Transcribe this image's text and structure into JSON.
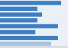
{
  "chart_data": {
    "type": "bar",
    "orientation": "horizontal",
    "categories": [
      null,
      null,
      null,
      null,
      null,
      null,
      null,
      null
    ],
    "values": [
      0.9,
      0.55,
      0.62,
      0.55,
      0.85,
      0.52,
      0.85,
      0.75
    ],
    "colors": [
      "#3F7FC1",
      "#3F7FC1",
      "#3F7FC1",
      "#3F7FC1",
      "#3F7FC1",
      "#3F7FC1",
      "#3F7FC1",
      "#A8C4DE"
    ],
    "xlim": [
      0,
      1.0
    ],
    "tick_labels": false
  }
}
